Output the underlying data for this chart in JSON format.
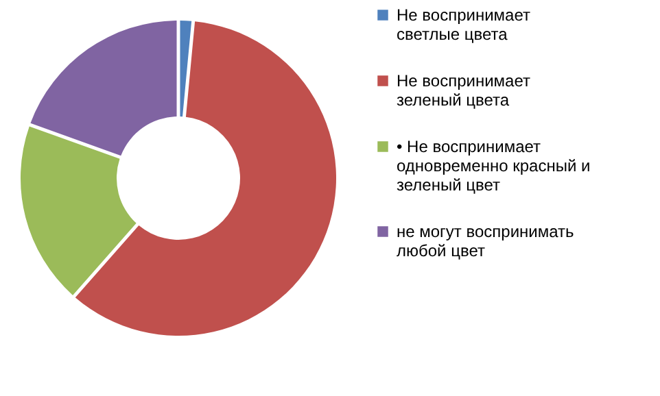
{
  "chart_data": {
    "type": "donut",
    "categories": [
      "Не воспринимает светлые цвета",
      "Не воспринимает зеленый цвета",
      "• Не воспринимает одновременно красный и зеленый цвет",
      "не могут воспринимать любой цвет"
    ],
    "values": [
      1.5,
      60,
      19,
      19.5
    ],
    "colors": [
      "#4f81bd",
      "#c0504d",
      "#9bbb59",
      "#8064a2"
    ],
    "legend": "right"
  }
}
